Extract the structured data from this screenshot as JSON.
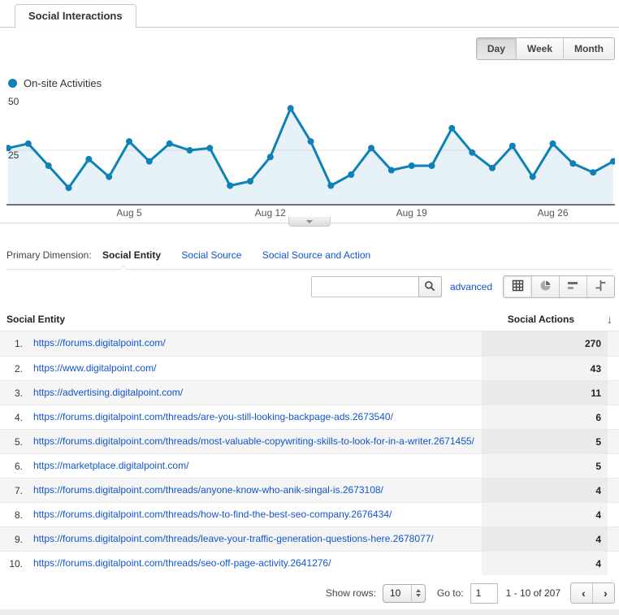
{
  "tab": {
    "title": "Social Interactions"
  },
  "time_controls": {
    "options": [
      "Day",
      "Week",
      "Month"
    ],
    "active": "Day"
  },
  "legend": {
    "label": "On-site Activities",
    "color": "#0e82b6"
  },
  "chart_data": {
    "type": "line",
    "series": [
      {
        "name": "On-site Activities",
        "values": [
          26,
          28,
          18,
          8,
          21,
          13,
          29,
          20,
          28,
          25,
          26,
          9,
          11,
          22,
          44,
          29,
          9,
          14,
          26,
          16,
          18,
          18,
          35,
          24,
          17,
          27,
          13,
          28,
          19,
          15,
          20
        ]
      }
    ],
    "x_tick_labels": [
      "Aug 5",
      "Aug 12",
      "Aug 19",
      "Aug 26"
    ],
    "x_tick_indices": [
      6,
      13,
      20,
      27
    ],
    "y_ticks": [
      "25",
      "50"
    ],
    "ylim": [
      0,
      50
    ],
    "gridlines": [
      25
    ],
    "line_color": "#0e82b6",
    "area_color": "rgba(14,130,182,0.10)",
    "title": "",
    "xlabel": "",
    "ylabel": ""
  },
  "primary_dimension": {
    "label": "Primary Dimension:",
    "active": "Social Entity",
    "links": [
      "Social Source",
      "Social Source and Action"
    ]
  },
  "toolbar": {
    "search_value": "",
    "search_placeholder": "",
    "advanced_label": "advanced",
    "views": [
      "table",
      "percentage",
      "performance",
      "comparison"
    ],
    "active_view": "table"
  },
  "table": {
    "columns": [
      "Social Entity",
      "Social Actions"
    ],
    "sort": {
      "column": "Social Actions",
      "direction": "desc",
      "icon": "↓"
    },
    "rows": [
      {
        "rank": "1.",
        "entity": "https://forums.digitalpoint.com/",
        "actions": "270"
      },
      {
        "rank": "2.",
        "entity": "https://www.digitalpoint.com/",
        "actions": "43"
      },
      {
        "rank": "3.",
        "entity": "https://advertising.digitalpoint.com/",
        "actions": "11"
      },
      {
        "rank": "4.",
        "entity": "https://forums.digitalpoint.com/threads/are-you-still-looking-backpage-ads.2673540/",
        "actions": "6"
      },
      {
        "rank": "5.",
        "entity": "https://forums.digitalpoint.com/threads/most-valuable-copywriting-skills-to-look-for-in-a-writer.2671455/",
        "actions": "5"
      },
      {
        "rank": "6.",
        "entity": "https://marketplace.digitalpoint.com/",
        "actions": "5"
      },
      {
        "rank": "7.",
        "entity": "https://forums.digitalpoint.com/threads/anyone-know-who-anik-singal-is.2673108/",
        "actions": "4"
      },
      {
        "rank": "8.",
        "entity": "https://forums.digitalpoint.com/threads/how-to-find-the-best-seo-company.2676434/",
        "actions": "4"
      },
      {
        "rank": "9.",
        "entity": "https://forums.digitalpoint.com/threads/leave-your-traffic-generation-questions-here.2678077/",
        "actions": "4"
      },
      {
        "rank": "10.",
        "entity": "https://forums.digitalpoint.com/threads/seo-off-page-activity.2641276/",
        "actions": "4"
      }
    ]
  },
  "footer": {
    "show_rows_label": "Show rows:",
    "show_rows_value": "10",
    "goto_label": "Go to:",
    "goto_value": "1",
    "range_text": "1 - 10 of 207",
    "prev_icon": "‹",
    "next_icon": "›"
  }
}
